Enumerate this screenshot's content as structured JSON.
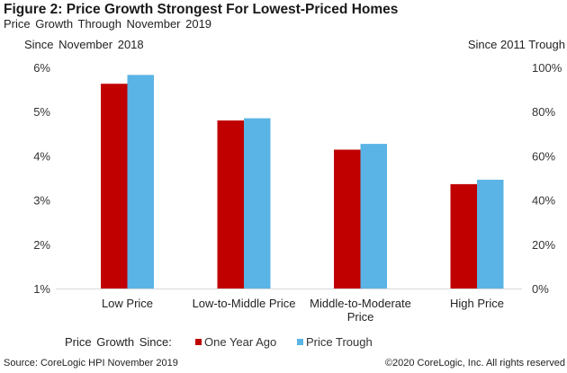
{
  "chart_data": {
    "type": "bar",
    "title": "Figure 2: Price Growth Strongest For Lowest-Priced Homes",
    "subtitle": "Price Growth Through  November  2019",
    "categories": [
      [
        "Low Price"
      ],
      [
        "Low-to-Middle Price"
      ],
      [
        "Middle-to-Moderate",
        "Price"
      ],
      [
        "High Price"
      ]
    ],
    "category_labels": [
      "Low Price",
      "Low-to-Middle Price",
      "Middle-to-Moderate Price",
      "High Price"
    ],
    "series": [
      {
        "name": "One Year Ago",
        "axis": "left",
        "color": "#c00000",
        "values": [
          5.63,
          4.8,
          4.14,
          3.36
        ]
      },
      {
        "name": "Price Trough",
        "axis": "right",
        "color": "#5ab4e5",
        "values": [
          96.6,
          77.0,
          65.4,
          49.2
        ]
      }
    ],
    "left_axis": {
      "title": "Since November  2018",
      "ylim": [
        1,
        6
      ],
      "ticks": [
        1,
        2,
        3,
        4,
        5,
        6
      ],
      "tick_labels": [
        "1%",
        "2%",
        "3%",
        "4%",
        "5%",
        "6%"
      ]
    },
    "right_axis": {
      "title": "Since 2011 Trough",
      "ylim": [
        0,
        100
      ],
      "ticks": [
        0,
        20,
        40,
        60,
        80,
        100
      ],
      "tick_labels": [
        "0%",
        "20%",
        "40%",
        "60%",
        "80%",
        "100%"
      ]
    },
    "legend": {
      "title": "Price Growth  Since:",
      "placement": "bottom"
    },
    "grid": false
  },
  "footer": {
    "source": "Source: CoreLogic HPI  November 2019",
    "copyright": "©2020 CoreLogic, Inc. All rights reserved"
  }
}
